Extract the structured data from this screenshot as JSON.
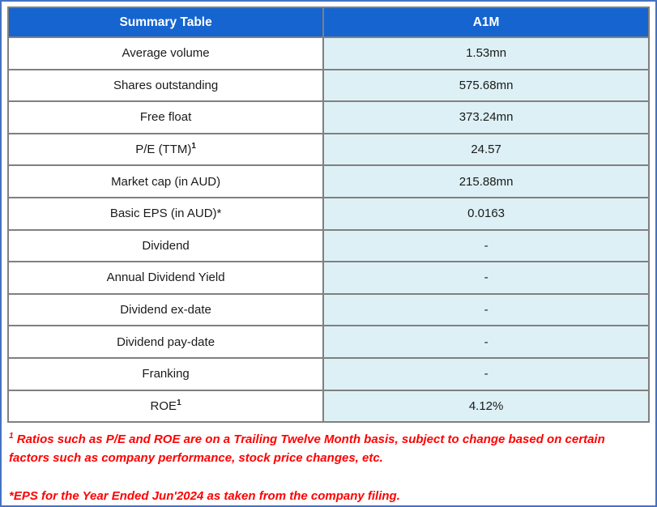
{
  "colors": {
    "outer_frame": "#4472C4",
    "header_bg": "#1564D0",
    "header_text": "#ffffff",
    "value_cell_bg": "#DDF0F5",
    "grid_line": "#808080",
    "table_border": "#595959",
    "body_text": "#1a1a1a",
    "footnote_text": "#FF0000"
  },
  "table": {
    "header": {
      "label_col": "Summary Table",
      "value_col": "A1M"
    },
    "rows": [
      {
        "label": "Average volume",
        "label_sup": "",
        "value": "1.53mn"
      },
      {
        "label": "Shares outstanding",
        "label_sup": "",
        "value": "575.68mn"
      },
      {
        "label": "Free float",
        "label_sup": "",
        "value": "373.24mn"
      },
      {
        "label": "P/E (TTM)",
        "label_sup": "1",
        "value": "24.57"
      },
      {
        "label": "Market cap (in AUD)",
        "label_sup": "",
        "value": "215.88mn"
      },
      {
        "label": "Basic EPS (in AUD)*",
        "label_sup": "",
        "value": "0.0163"
      },
      {
        "label": "Dividend",
        "label_sup": "",
        "value": "-"
      },
      {
        "label": "Annual Dividend Yield",
        "label_sup": "",
        "value": "-"
      },
      {
        "label": "Dividend ex-date",
        "label_sup": "",
        "value": "-"
      },
      {
        "label": "Dividend pay-date",
        "label_sup": "",
        "value": "-"
      },
      {
        "label": "Franking",
        "label_sup": "",
        "value": "-"
      },
      {
        "label": "ROE",
        "label_sup": "1",
        "value": "4.12%"
      }
    ]
  },
  "footnotes": [
    {
      "sup": "1",
      "text": " Ratios such as P/E and ROE are on a Trailing Twelve Month basis, subject to change based on certain factors such as company performance, stock price changes, etc."
    },
    {
      "sup": "",
      "text": "*EPS for the Year Ended Jun'2024 as taken from the company filing."
    }
  ],
  "chart_data": {
    "type": "table",
    "title": "Summary Table",
    "columns": [
      "Summary Table",
      "A1M"
    ],
    "rows": [
      [
        "Average volume",
        "1.53mn"
      ],
      [
        "Shares outstanding",
        "575.68mn"
      ],
      [
        "Free float",
        "373.24mn"
      ],
      [
        "P/E (TTM)¹",
        "24.57"
      ],
      [
        "Market cap (in AUD)",
        "215.88mn"
      ],
      [
        "Basic EPS (in AUD)*",
        "0.0163"
      ],
      [
        "Dividend",
        "-"
      ],
      [
        "Annual Dividend Yield",
        "-"
      ],
      [
        "Dividend ex-date",
        "-"
      ],
      [
        "Dividend pay-date",
        "-"
      ],
      [
        "Franking",
        "-"
      ],
      [
        "ROE¹",
        "4.12%"
      ]
    ],
    "footnotes": [
      "¹ Ratios such as P/E and ROE are on a Trailing Twelve Month basis, subject to change based on certain factors such as company performance, stock price changes, etc.",
      "*EPS for the Year Ended Jun'2024 as taken from the company filing."
    ]
  }
}
